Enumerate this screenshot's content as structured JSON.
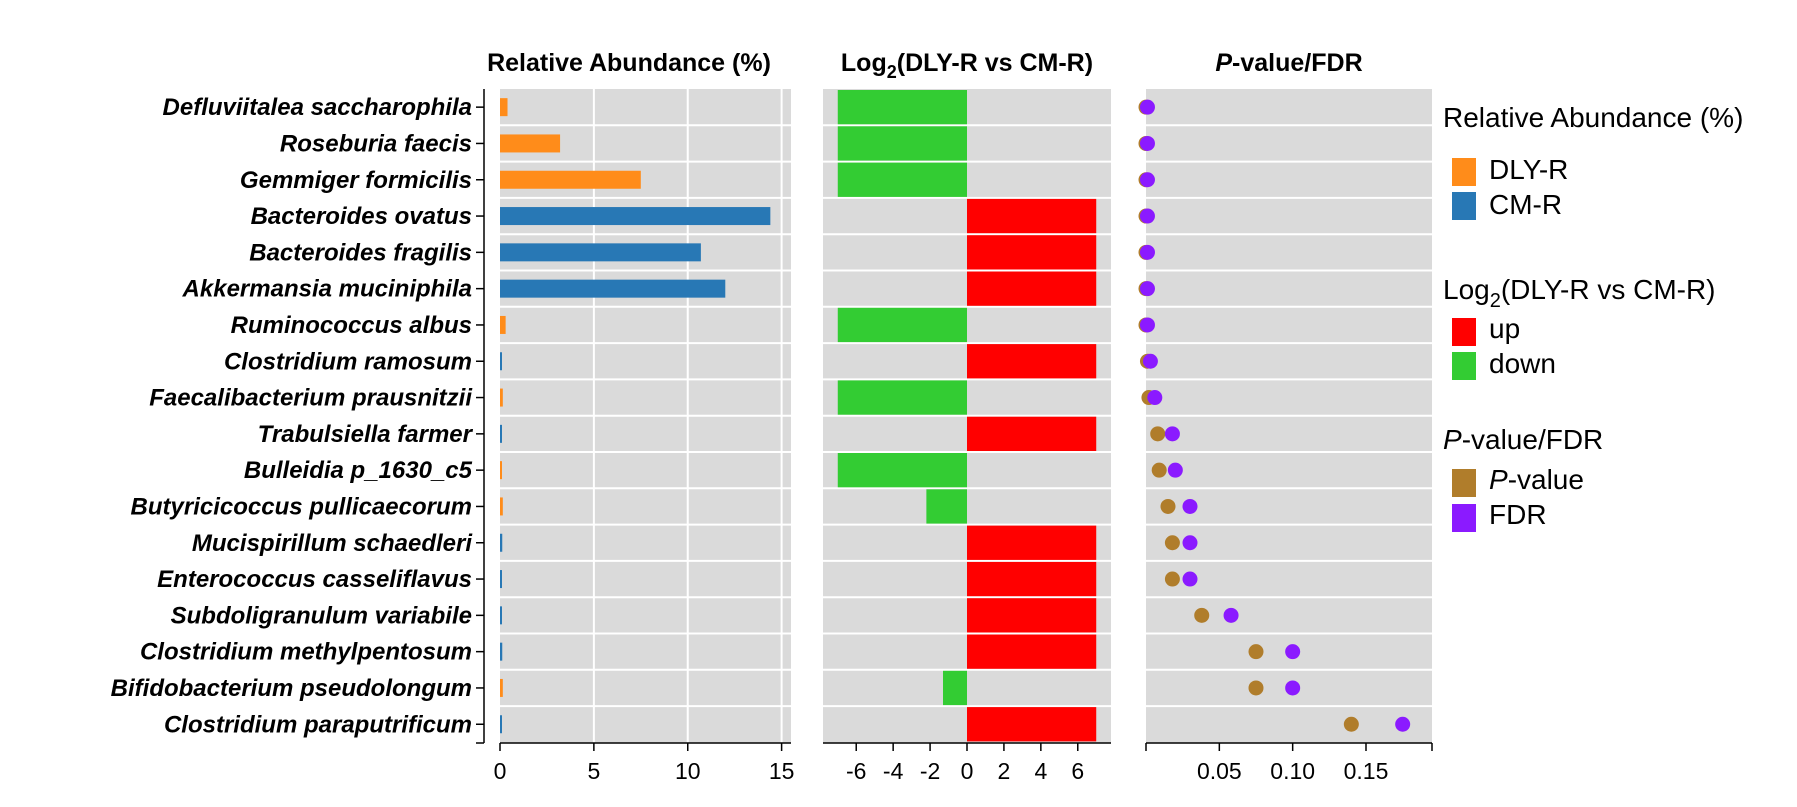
{
  "chart_data": {
    "type": "multi-panel",
    "species": [
      "Defluviitalea saccharophila",
      "Roseburia faecis",
      "Gemmiger formicilis",
      "Bacteroides ovatus",
      "Bacteroides fragilis",
      "Akkermansia muciniphila",
      "Ruminococcus albus",
      "Clostridium ramosum",
      "Faecalibacterium prausnitzii",
      "Trabulsiella farmer",
      "Bulleidia p_1630_c5",
      "Butyricicoccus pullicaecorum",
      "Mucispirillum schaedleri",
      "Enterococcus casseliflavus",
      "Subdoligranulum variabile",
      "Clostridium methylpentosum",
      "Bifidobacterium pseudolongum",
      "Clostridium paraputrificum"
    ],
    "panels": {
      "abundance": {
        "title": "Relative Abundance (%)",
        "xlim": [
          0,
          15.5
        ],
        "ticks": [
          0,
          5,
          10,
          15
        ],
        "tick_labels": [
          "0",
          "5",
          "10",
          "15"
        ],
        "values": [
          0.4,
          3.2,
          7.5,
          14.4,
          10.7,
          12.0,
          0.3,
          0.05,
          0.15,
          0.1,
          0.05,
          0.15,
          0.12,
          0.08,
          0.08,
          0.12,
          0.15,
          0.05
        ],
        "group": [
          "DLY-R",
          "DLY-R",
          "DLY-R",
          "CM-R",
          "CM-R",
          "CM-R",
          "DLY-R",
          "CM-R",
          "DLY-R",
          "CM-R",
          "DLY-R",
          "DLY-R",
          "CM-R",
          "CM-R",
          "CM-R",
          "CM-R",
          "DLY-R",
          "CM-R"
        ]
      },
      "log2fc": {
        "title_main": "Log",
        "title_sub": "2",
        "title_rest": "(DLY-R vs CM-R)",
        "xlim": [
          -7.8,
          7.8
        ],
        "ticks": [
          -6,
          -4,
          -2,
          0,
          2,
          4,
          6
        ],
        "tick_labels": [
          "-6",
          "-4",
          "-2",
          "0",
          "2",
          "4",
          "6"
        ],
        "values": [
          -7,
          -7,
          -7,
          7,
          7,
          7,
          -7,
          7,
          -7,
          7,
          -7,
          -2.2,
          7,
          7,
          7,
          7,
          -1.3,
          7
        ]
      },
      "pvalue": {
        "title_italic": "P",
        "title_rest": "-value/FDR",
        "xlim": [
          0,
          0.195
        ],
        "ticks": [
          0.05,
          0.1,
          0.15
        ],
        "tick_labels": [
          "0.05",
          "0.10",
          "0.15"
        ],
        "pvalue": [
          0.0,
          0.0,
          0.0,
          0.0,
          0.0,
          0.0,
          0.0,
          0.001,
          0.002,
          0.008,
          0.009,
          0.015,
          0.018,
          0.018,
          0.038,
          0.075,
          0.075,
          0.14
        ],
        "fdr": [
          0.001,
          0.001,
          0.001,
          0.001,
          0.001,
          0.001,
          0.001,
          0.003,
          0.006,
          0.018,
          0.02,
          0.03,
          0.03,
          0.03,
          0.058,
          0.1,
          0.1,
          0.175
        ]
      }
    },
    "legend": {
      "abundance_title": "Relative Abundance (%)",
      "abundance_items": [
        {
          "label": "DLY-R",
          "color": "#FF8C1A"
        },
        {
          "label": "CM-R",
          "color": "#2878B5"
        }
      ],
      "log2_title_main": "Log",
      "log2_title_sub": "2",
      "log2_title_rest": "(DLY-R vs CM-R)",
      "log2_items": [
        {
          "label": "up",
          "color": "#FF0000"
        },
        {
          "label": "down",
          "color": "#33CC33"
        }
      ],
      "p_title_italic": "P",
      "p_title_rest": "-value/FDR",
      "p_items": [
        {
          "label_italic": "P",
          "label_rest": "-value",
          "color": "#B07D2B"
        },
        {
          "label_italic": "",
          "label_rest": "FDR",
          "color": "#8B1AFF"
        }
      ]
    }
  }
}
